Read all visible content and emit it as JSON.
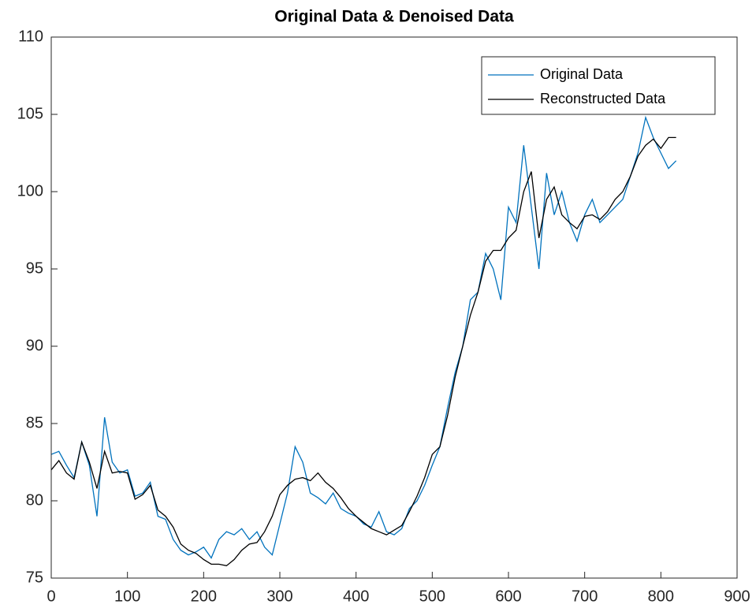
{
  "chart_data": {
    "type": "line",
    "title": "Original Data & Denoised Data",
    "x": [
      0,
      10,
      20,
      30,
      40,
      50,
      60,
      70,
      80,
      90,
      100,
      110,
      120,
      130,
      140,
      150,
      160,
      170,
      180,
      190,
      200,
      210,
      220,
      230,
      240,
      250,
      260,
      270,
      280,
      290,
      300,
      310,
      320,
      330,
      340,
      350,
      360,
      370,
      380,
      390,
      400,
      410,
      420,
      430,
      440,
      450,
      460,
      470,
      480,
      490,
      500,
      510,
      520,
      530,
      540,
      550,
      560,
      570,
      580,
      590,
      600,
      610,
      620,
      630,
      640,
      650,
      660,
      670,
      680,
      690,
      700,
      710,
      720,
      730,
      740,
      750,
      760,
      770,
      780,
      790,
      800,
      810,
      820
    ],
    "series": [
      {
        "name": "Original Data",
        "color": "#0072bd",
        "values": [
          83.0,
          83.2,
          82.3,
          81.5,
          83.8,
          82.3,
          79.0,
          85.4,
          82.5,
          81.8,
          82.0,
          80.3,
          80.5,
          81.2,
          79.0,
          78.8,
          77.5,
          76.8,
          76.5,
          76.7,
          77.0,
          76.3,
          77.5,
          78.0,
          77.8,
          78.2,
          77.5,
          78.0,
          77.0,
          76.5,
          78.5,
          80.5,
          83.5,
          82.5,
          80.5,
          80.2,
          79.8,
          80.5,
          79.5,
          79.2,
          79.0,
          78.5,
          78.3,
          79.3,
          78.0,
          77.8,
          78.2,
          79.5,
          80.0,
          81.0,
          82.3,
          83.5,
          86.0,
          88.3,
          90.0,
          93.0,
          93.5,
          96.0,
          95.0,
          93.0,
          99.0,
          98.0,
          103.0,
          99.0,
          95.0,
          101.2,
          98.5,
          100.0,
          98.0,
          96.8,
          98.5,
          99.5,
          98.0,
          98.5,
          99.0,
          99.5,
          101.0,
          102.5,
          104.8,
          103.5,
          102.5,
          101.5,
          102.0
        ]
      },
      {
        "name": "Reconstructed Data",
        "color": "#000000",
        "values": [
          82.0,
          82.6,
          81.8,
          81.4,
          83.8,
          82.5,
          80.8,
          83.2,
          81.8,
          81.9,
          81.8,
          80.1,
          80.4,
          81.0,
          79.4,
          79.0,
          78.3,
          77.2,
          76.8,
          76.6,
          76.2,
          75.9,
          75.9,
          75.8,
          76.2,
          76.8,
          77.2,
          77.3,
          78.0,
          79.0,
          80.4,
          81.0,
          81.4,
          81.5,
          81.3,
          81.8,
          81.2,
          80.8,
          80.2,
          79.5,
          79.0,
          78.6,
          78.2,
          78.0,
          77.8,
          78.1,
          78.4,
          79.3,
          80.3,
          81.5,
          83.0,
          83.5,
          85.5,
          88.0,
          90.0,
          92.0,
          93.5,
          95.5,
          96.2,
          96.2,
          97.0,
          97.5,
          100.0,
          101.3,
          97.0,
          99.5,
          100.3,
          98.5,
          98.0,
          97.6,
          98.4,
          98.5,
          98.2,
          98.7,
          99.5,
          100.0,
          101.0,
          102.3,
          103.0,
          103.4,
          102.8,
          103.5,
          103.5
        ]
      }
    ],
    "xlim": [
      0,
      900
    ],
    "xticks": [
      0,
      100,
      200,
      300,
      400,
      500,
      600,
      700,
      800,
      900
    ],
    "ylim": [
      75,
      110
    ],
    "yticks": [
      75,
      80,
      85,
      90,
      95,
      100,
      105,
      110
    ],
    "legend": "northeast",
    "grid": false
  }
}
